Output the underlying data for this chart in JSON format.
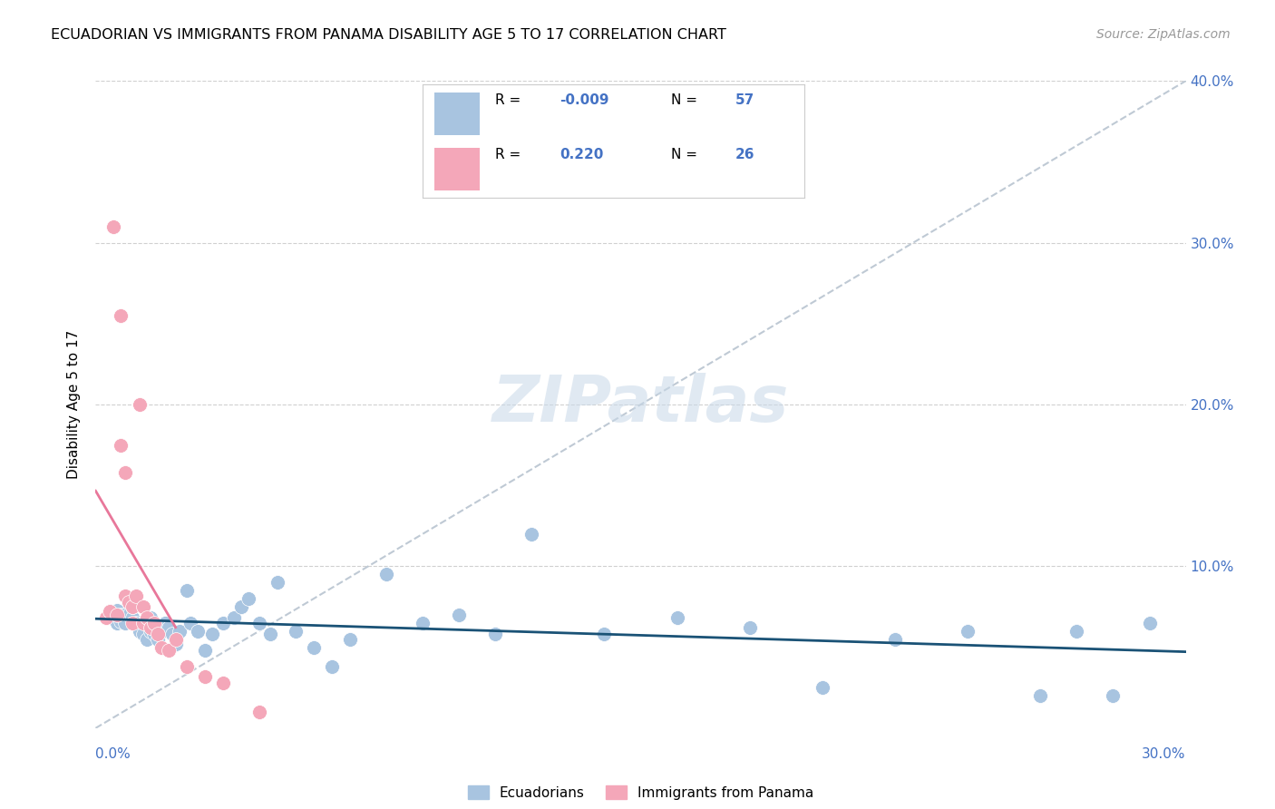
{
  "title": "ECUADORIAN VS IMMIGRANTS FROM PANAMA DISABILITY AGE 5 TO 17 CORRELATION CHART",
  "source": "Source: ZipAtlas.com",
  "ylabel": "Disability Age 5 to 17",
  "xlim": [
    0.0,
    0.3
  ],
  "ylim": [
    0.0,
    0.4
  ],
  "ytick_vals": [
    0.1,
    0.2,
    0.3,
    0.4
  ],
  "ytick_labels": [
    "10.0%",
    "20.0%",
    "30.0%",
    "40.0%"
  ],
  "blue_color": "#a8c4e0",
  "pink_color": "#f4a7b9",
  "blue_line_color": "#1a5276",
  "pink_line_color": "#e8779a",
  "gray_line_color": "#b8c4d0",
  "axis_label_color": "#4472c4",
  "watermark": "ZIPatlas",
  "r1": "-0.009",
  "n1": "57",
  "r2": "0.220",
  "n2": "26",
  "ecuadorians_x": [
    0.004,
    0.005,
    0.006,
    0.006,
    0.007,
    0.007,
    0.008,
    0.008,
    0.009,
    0.009,
    0.01,
    0.01,
    0.011,
    0.012,
    0.013,
    0.014,
    0.015,
    0.015,
    0.016,
    0.017,
    0.018,
    0.019,
    0.02,
    0.021,
    0.022,
    0.023,
    0.025,
    0.026,
    0.028,
    0.03,
    0.032,
    0.035,
    0.038,
    0.04,
    0.042,
    0.045,
    0.048,
    0.05,
    0.055,
    0.06,
    0.065,
    0.07,
    0.08,
    0.09,
    0.1,
    0.11,
    0.12,
    0.14,
    0.16,
    0.18,
    0.2,
    0.22,
    0.24,
    0.26,
    0.27,
    0.28,
    0.29
  ],
  "ecuadorians_y": [
    0.072,
    0.068,
    0.073,
    0.065,
    0.07,
    0.066,
    0.07,
    0.065,
    0.078,
    0.07,
    0.068,
    0.075,
    0.065,
    0.06,
    0.058,
    0.055,
    0.068,
    0.06,
    0.058,
    0.055,
    0.06,
    0.065,
    0.062,
    0.058,
    0.052,
    0.06,
    0.085,
    0.065,
    0.06,
    0.048,
    0.058,
    0.065,
    0.068,
    0.075,
    0.08,
    0.065,
    0.058,
    0.09,
    0.06,
    0.05,
    0.038,
    0.055,
    0.095,
    0.065,
    0.07,
    0.058,
    0.12,
    0.058,
    0.068,
    0.062,
    0.025,
    0.055,
    0.06,
    0.02,
    0.06,
    0.02,
    0.065
  ],
  "panama_x": [
    0.003,
    0.004,
    0.005,
    0.006,
    0.007,
    0.007,
    0.008,
    0.008,
    0.009,
    0.01,
    0.01,
    0.011,
    0.012,
    0.013,
    0.013,
    0.014,
    0.015,
    0.016,
    0.017,
    0.018,
    0.02,
    0.022,
    0.025,
    0.03,
    0.035,
    0.045
  ],
  "panama_y": [
    0.068,
    0.072,
    0.31,
    0.07,
    0.255,
    0.175,
    0.158,
    0.082,
    0.078,
    0.075,
    0.065,
    0.082,
    0.2,
    0.075,
    0.065,
    0.068,
    0.062,
    0.065,
    0.058,
    0.05,
    0.048,
    0.055,
    0.038,
    0.032,
    0.028,
    0.01
  ]
}
